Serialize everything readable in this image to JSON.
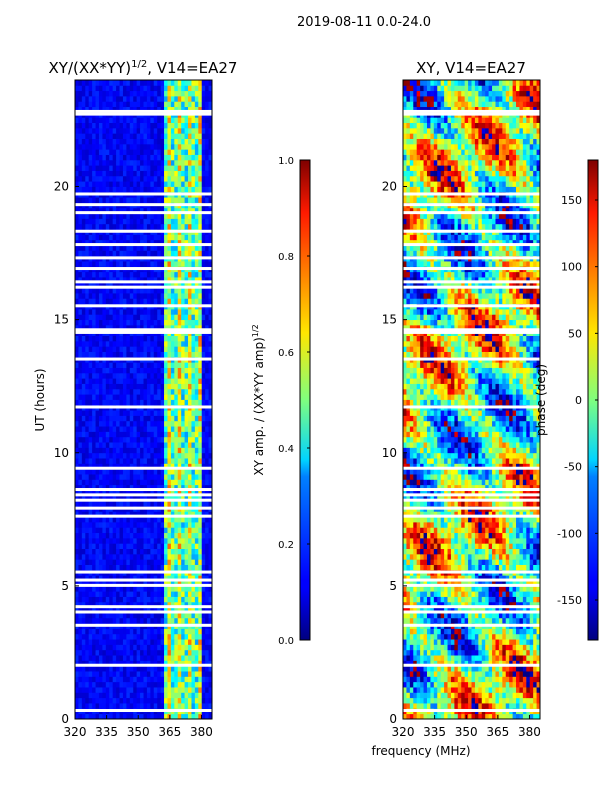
{
  "figure": {
    "suptitle": "2019-08-11 0.0-24.0",
    "xlabel_shared": "frequency (MHz)"
  },
  "chart_data": [
    {
      "type": "heatmap",
      "title_main": "XY/(XX*YY)",
      "title_sup": "1/2",
      "title_rest": ", V14=EA27",
      "xlabel": "",
      "ylabel": "UT (hours)",
      "xlim": [
        320,
        385
      ],
      "ylim": [
        0,
        24
      ],
      "xticks": [
        "320",
        "335",
        "350",
        "365",
        "380"
      ],
      "xtick_values": [
        320,
        335,
        350,
        365,
        380
      ],
      "yticks": [
        "0",
        "5",
        "10",
        "15",
        "20"
      ],
      "ytick_values": [
        0,
        5,
        10,
        15,
        20
      ],
      "value_range": [
        0.0,
        1.0
      ],
      "background_level": 0.12,
      "bright_band_mhz": [
        362,
        380
      ],
      "bright_level": 0.5,
      "flagged_ut_hours": [
        0.3,
        2.0,
        3.5,
        4.0,
        4.2,
        5.0,
        5.2,
        5.5,
        7.6,
        7.9,
        8.2,
        8.4,
        8.6,
        9.4,
        11.7,
        13.5,
        14.5,
        14.6,
        15.5,
        16.2,
        16.4,
        16.9,
        17.3,
        17.8,
        18.3,
        19.0,
        19.3,
        19.7,
        22.7,
        22.8
      ]
    },
    {
      "type": "heatmap",
      "title": "XY, V14=EA27",
      "xlabel": "frequency (MHz)",
      "ylabel": "",
      "xlim": [
        320,
        385
      ],
      "ylim": [
        0,
        24
      ],
      "xticks": [
        "320",
        "335",
        "350",
        "365",
        "380"
      ],
      "xtick_values": [
        320,
        335,
        350,
        365,
        380
      ],
      "yticks": [
        "0",
        "5",
        "10",
        "15",
        "20"
      ],
      "ytick_values": [
        0,
        5,
        10,
        15,
        20
      ],
      "value_range": [
        -180,
        180
      ],
      "flagged_ut_hours": [
        0.3,
        2.0,
        3.5,
        4.0,
        4.2,
        5.0,
        5.2,
        5.5,
        7.6,
        7.9,
        8.2,
        8.4,
        8.6,
        9.4,
        11.7,
        13.5,
        14.5,
        14.6,
        15.5,
        16.2,
        16.4,
        16.9,
        17.3,
        17.8,
        18.3,
        19.0,
        19.3,
        19.7,
        22.7,
        22.8
      ]
    }
  ],
  "colorbars": [
    {
      "label": "XY amp. / (XX*YY amp)",
      "label_sup": "1/2",
      "min": 0.0,
      "max": 1.0,
      "ticks": [
        "0.0",
        "0.2",
        "0.4",
        "0.6",
        "0.8",
        "1.0"
      ],
      "tick_values": [
        0.0,
        0.2,
        0.4,
        0.6,
        0.8,
        1.0
      ]
    },
    {
      "label": "phase (deg)",
      "min": -180,
      "max": 180,
      "ticks": [
        "-150",
        "-100",
        "-50",
        "0",
        "50",
        "100",
        "150"
      ],
      "tick_values": [
        -150,
        -100,
        -50,
        0,
        50,
        100,
        150
      ]
    }
  ],
  "colors": {
    "flag_stripe": "#ffffff",
    "axis": "#000000"
  }
}
